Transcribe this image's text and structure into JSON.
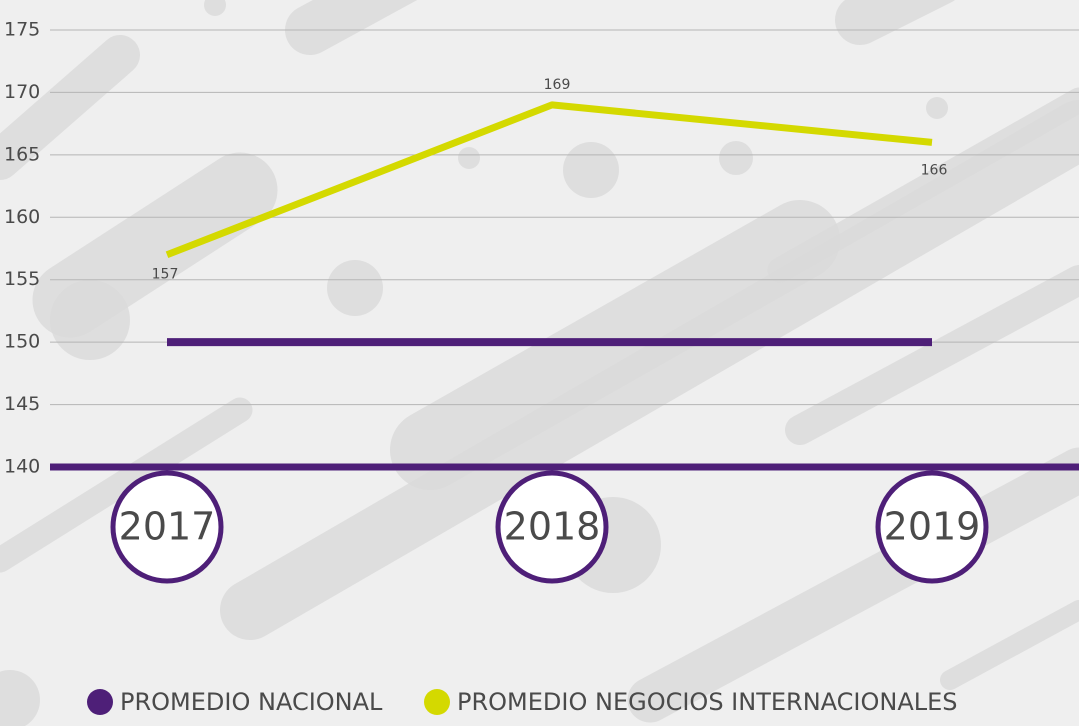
{
  "chart_data": {
    "type": "line",
    "categories": [
      "2017",
      "2018",
      "2019"
    ],
    "series": [
      {
        "name": "PROMEDIO NACIONAL",
        "color": "#4e1f78",
        "values": [
          150,
          150,
          150
        ]
      },
      {
        "name": "PROMEDIO NEGOCIOS INTERNACIONALES",
        "color": "#d4d900",
        "values": [
          157,
          169,
          166
        ]
      }
    ],
    "ylim": [
      140,
      175
    ],
    "yticks": [
      140,
      145,
      150,
      155,
      160,
      165,
      170,
      175
    ],
    "grid": true,
    "legend": "bottom"
  }
}
